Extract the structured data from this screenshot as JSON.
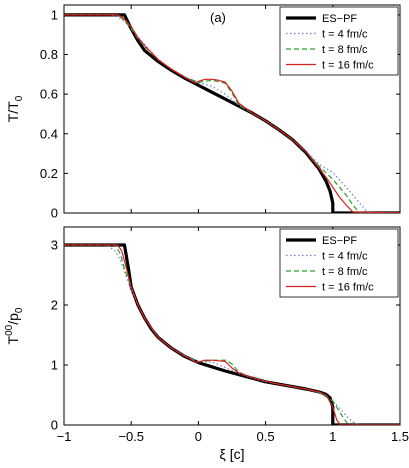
{
  "chart_data": [
    {
      "type": "line",
      "panel_label": "(a)",
      "ylabel_main": "T/T",
      "ylabel_sub": "0",
      "xlabel": "",
      "xlim": [
        -1,
        1.5
      ],
      "ylim": [
        0,
        1.05
      ],
      "xticks": [
        -1,
        -0.5,
        0,
        0.5,
        1,
        1.5
      ],
      "yticks": [
        0,
        0.2,
        0.4,
        0.6,
        0.8,
        1
      ],
      "xtick_labels": [
        "",
        "",
        "",
        "",
        "",
        ""
      ],
      "ytick_labels": [
        "0",
        "0.2",
        "0.4",
        "0.6",
        "0.8",
        "1"
      ],
      "legend_position": "top-right",
      "series": [
        {
          "name": "ES−PF",
          "color": "#000000",
          "style": "solid-thick",
          "x": [
            -1,
            -0.55,
            -0.5,
            -0.45,
            -0.4,
            -0.3,
            -0.2,
            -0.1,
            0,
            0.1,
            0.2,
            0.3,
            0.4,
            0.5,
            0.6,
            0.7,
            0.8,
            0.9,
            0.95,
            0.98,
            1.0,
            1.0,
            1.5
          ],
          "y": [
            1,
            1,
            0.93,
            0.87,
            0.82,
            0.765,
            0.72,
            0.68,
            0.645,
            0.61,
            0.575,
            0.54,
            0.505,
            0.465,
            0.42,
            0.37,
            0.305,
            0.22,
            0.16,
            0.11,
            0.05,
            0,
            0
          ]
        },
        {
          "name": "t = 4 fm/c",
          "color": "#6a7fd8",
          "style": "dotted",
          "x": [
            -1,
            -0.65,
            -0.6,
            -0.55,
            -0.5,
            -0.45,
            -0.4,
            -0.3,
            -0.2,
            -0.1,
            0,
            0.1,
            0.2,
            0.3,
            0.4,
            0.5,
            0.6,
            0.7,
            0.8,
            0.9,
            1.0,
            1.1,
            1.2,
            1.25,
            1.3,
            1.5
          ],
          "y": [
            1,
            1,
            0.99,
            0.965,
            0.94,
            0.89,
            0.85,
            0.775,
            0.725,
            0.685,
            0.66,
            0.64,
            0.6,
            0.545,
            0.505,
            0.465,
            0.42,
            0.37,
            0.31,
            0.245,
            0.205,
            0.13,
            0.05,
            0.01,
            0,
            0
          ]
        },
        {
          "name": "t = 8 fm/c",
          "color": "#2aa02a",
          "style": "dashed",
          "x": [
            -1,
            -0.62,
            -0.58,
            -0.55,
            -0.5,
            -0.45,
            -0.4,
            -0.3,
            -0.2,
            -0.1,
            0,
            0.1,
            0.2,
            0.25,
            0.3,
            0.4,
            0.5,
            0.6,
            0.7,
            0.8,
            0.9,
            1.0,
            1.1,
            1.15,
            1.2,
            1.5
          ],
          "y": [
            1,
            1,
            0.99,
            0.97,
            0.93,
            0.88,
            0.84,
            0.775,
            0.725,
            0.685,
            0.66,
            0.67,
            0.655,
            0.605,
            0.545,
            0.505,
            0.465,
            0.42,
            0.37,
            0.31,
            0.235,
            0.17,
            0.09,
            0.04,
            0,
            0
          ]
        },
        {
          "name": "t = 16 fm/c",
          "color": "#d62020",
          "style": "solid",
          "x": [
            -1,
            -0.6,
            -0.57,
            -0.54,
            -0.5,
            -0.45,
            -0.4,
            -0.3,
            -0.2,
            -0.1,
            -0.02,
            0,
            0.05,
            0.1,
            0.15,
            0.2,
            0.25,
            0.3,
            0.4,
            0.5,
            0.6,
            0.7,
            0.8,
            0.9,
            0.95,
            1.0,
            1.05,
            1.1,
            1.15,
            1.5
          ],
          "y": [
            1,
            1,
            0.99,
            0.97,
            0.94,
            0.885,
            0.845,
            0.775,
            0.725,
            0.685,
            0.655,
            0.665,
            0.675,
            0.675,
            0.67,
            0.66,
            0.615,
            0.555,
            0.505,
            0.465,
            0.42,
            0.37,
            0.31,
            0.225,
            0.18,
            0.13,
            0.08,
            0.04,
            0.005,
            0
          ]
        }
      ]
    },
    {
      "type": "line",
      "ylabel_main": "T",
      "ylabel_sup": "00",
      "ylabel_rest": "/p",
      "ylabel_sub": "0",
      "xlabel": "ξ [c]",
      "xlim": [
        -1,
        1.5
      ],
      "ylim": [
        0,
        3.3
      ],
      "xticks": [
        -1,
        -0.5,
        0,
        0.5,
        1,
        1.5
      ],
      "yticks": [
        0,
        1,
        2,
        3
      ],
      "xtick_labels": [
        "−1",
        "−0.5",
        "0",
        "0.5",
        "1",
        "1.5"
      ],
      "ytick_labels": [
        "0",
        "1",
        "2",
        "3"
      ],
      "legend_position": "top-right",
      "series": [
        {
          "name": "ES−PF",
          "color": "#000000",
          "style": "solid-thick",
          "x": [
            -1,
            -0.55,
            -0.52,
            -0.5,
            -0.45,
            -0.4,
            -0.35,
            -0.3,
            -0.2,
            -0.1,
            0,
            0.1,
            0.2,
            0.3,
            0.4,
            0.5,
            0.6,
            0.7,
            0.8,
            0.9,
            0.95,
            0.98,
            1.0,
            1.0,
            1.5
          ],
          "y": [
            3,
            3,
            2.6,
            2.3,
            2.0,
            1.78,
            1.6,
            1.46,
            1.28,
            1.14,
            1.04,
            0.97,
            0.9,
            0.84,
            0.78,
            0.72,
            0.68,
            0.64,
            0.6,
            0.55,
            0.51,
            0.45,
            0.3,
            0,
            0
          ]
        },
        {
          "name": "t = 4 fm/c",
          "color": "#6a7fd8",
          "style": "dotted",
          "x": [
            -1,
            -0.68,
            -0.62,
            -0.58,
            -0.54,
            -0.5,
            -0.45,
            -0.4,
            -0.3,
            -0.2,
            -0.1,
            0,
            0.1,
            0.2,
            0.3,
            0.4,
            0.5,
            0.6,
            0.7,
            0.8,
            0.9,
            1.0,
            1.05,
            1.1,
            1.15,
            1.2,
            1.5
          ],
          "y": [
            3,
            3,
            2.9,
            2.75,
            2.5,
            2.25,
            2.0,
            1.78,
            1.46,
            1.28,
            1.15,
            1.06,
            1.05,
            0.96,
            0.86,
            0.78,
            0.72,
            0.68,
            0.64,
            0.6,
            0.54,
            0.4,
            0.28,
            0.15,
            0.05,
            0,
            0
          ]
        },
        {
          "name": "t = 8 fm/c",
          "color": "#2aa02a",
          "style": "dashed",
          "x": [
            -1,
            -0.62,
            -0.58,
            -0.55,
            -0.5,
            -0.45,
            -0.4,
            -0.3,
            -0.2,
            -0.1,
            0,
            0.1,
            0.2,
            0.25,
            0.3,
            0.4,
            0.5,
            0.6,
            0.7,
            0.8,
            0.9,
            1.0,
            1.05,
            1.1,
            1.12,
            1.5
          ],
          "y": [
            3,
            3,
            2.85,
            2.6,
            2.3,
            2.0,
            1.78,
            1.46,
            1.28,
            1.15,
            1.05,
            1.08,
            1.08,
            1.02,
            0.88,
            0.79,
            0.73,
            0.68,
            0.64,
            0.6,
            0.54,
            0.4,
            0.22,
            0.05,
            0,
            0
          ]
        },
        {
          "name": "t = 16 fm/c",
          "color": "#d62020",
          "style": "solid",
          "x": [
            -1,
            -0.6,
            -0.57,
            -0.54,
            -0.5,
            -0.45,
            -0.4,
            -0.3,
            -0.2,
            -0.1,
            -0.02,
            0,
            0.05,
            0.1,
            0.15,
            0.2,
            0.25,
            0.3,
            0.4,
            0.5,
            0.6,
            0.7,
            0.8,
            0.9,
            0.95,
            1.0,
            1.03,
            1.06,
            1.5
          ],
          "y": [
            3,
            3,
            2.9,
            2.65,
            2.3,
            2.0,
            1.78,
            1.46,
            1.28,
            1.15,
            1.05,
            1.05,
            1.08,
            1.08,
            1.07,
            1.06,
            0.95,
            0.87,
            0.79,
            0.73,
            0.68,
            0.64,
            0.6,
            0.55,
            0.5,
            0.3,
            0.08,
            0,
            0
          ]
        }
      ]
    }
  ]
}
